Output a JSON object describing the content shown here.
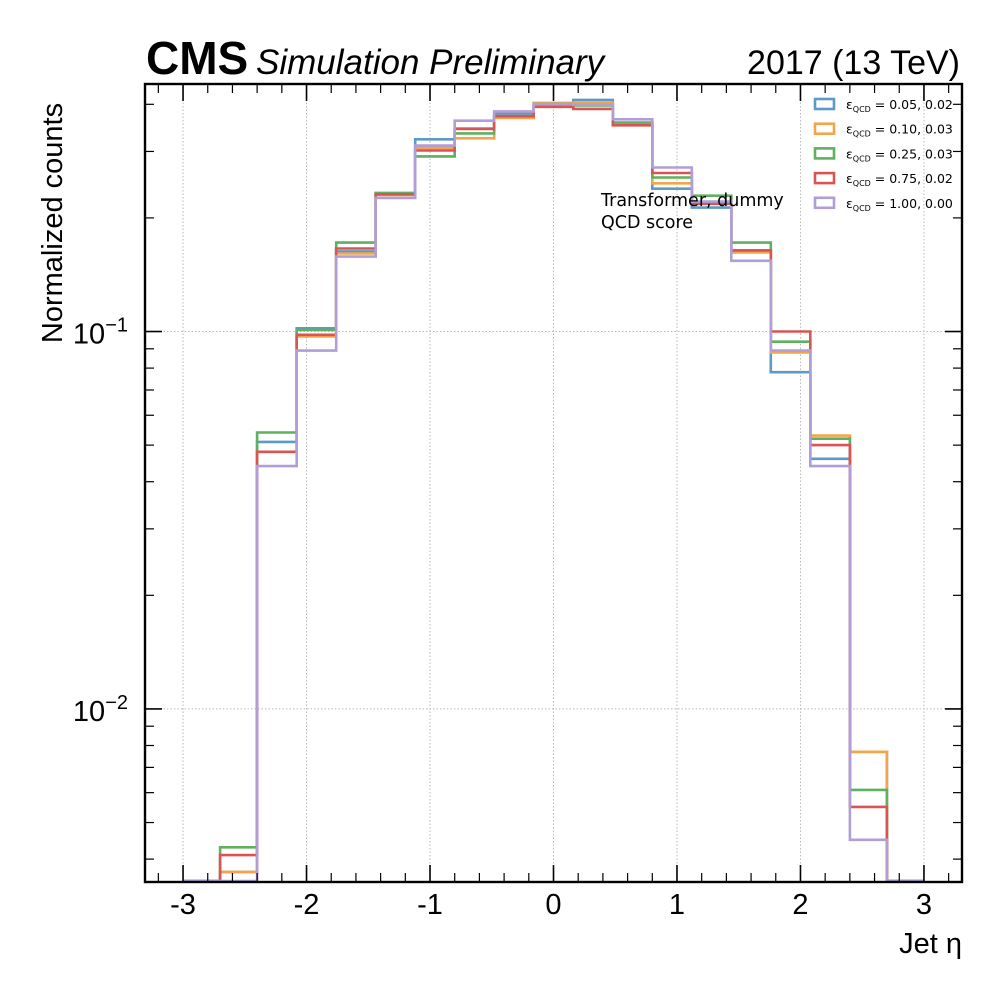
{
  "header": {
    "experiment": "CMS",
    "status": "Simulation Preliminary",
    "lumi": "2017 (13 TeV)"
  },
  "annotation": {
    "line1": "Transformer, dummy",
    "line2": "QCD score"
  },
  "chart_data": {
    "type": "step-histogram",
    "xlabel": "Jet η",
    "ylabel": "Normalized counts",
    "xlim": [
      -3.3,
      3.3
    ],
    "ylim": [
      0.0035,
      0.45
    ],
    "yscale": "log",
    "grid": true,
    "legend_position": "top-right",
    "x_ticks": [
      -3,
      -2,
      -1,
      0,
      1,
      2,
      3
    ],
    "x_tick_labels": [
      "-3",
      "-2",
      "-1",
      "0",
      "1",
      "2",
      "3"
    ],
    "y_ticks": [
      0.01,
      0.1
    ],
    "y_tick_labels": [
      [
        "10",
        "−2"
      ],
      [
        "10",
        "−1"
      ]
    ],
    "bin_edges": [
      -3.0,
      -2.7,
      -2.4,
      -2.08,
      -1.76,
      -1.44,
      -1.12,
      -0.8,
      -0.48,
      -0.16,
      0.16,
      0.48,
      0.8,
      1.12,
      1.44,
      1.76,
      2.08,
      2.4,
      2.7,
      3.0
    ],
    "series": [
      {
        "name": "ε_QCD = 0.05, 0.02",
        "label_main": "ε",
        "label_sub": "QCD",
        "label_rest": " = 0.05, 0.02",
        "color": "#5e9ac6",
        "values": [
          0.0023,
          0.0037,
          0.051,
          0.102,
          0.163,
          0.232,
          0.323,
          0.345,
          0.378,
          0.403,
          0.411,
          0.354,
          0.239,
          0.213,
          0.164,
          0.078,
          0.046,
          0.0077,
          0.0026
        ]
      },
      {
        "name": "ε_QCD = 0.10, 0.03",
        "label_main": "ε",
        "label_sub": "QCD",
        "label_rest": " = 0.10, 0.03",
        "color": "#f3a54d",
        "values": [
          0.0023,
          0.0037,
          0.048,
          0.097,
          0.161,
          0.23,
          0.307,
          0.325,
          0.368,
          0.402,
          0.404,
          0.357,
          0.247,
          0.219,
          0.162,
          0.088,
          0.053,
          0.0077,
          0.0026
        ]
      },
      {
        "name": "ε_QCD = 0.25, 0.03",
        "label_main": "ε",
        "label_sub": "QCD",
        "label_rest": " = 0.25, 0.03",
        "color": "#5fb05f",
        "values": [
          0.0023,
          0.0043,
          0.054,
          0.101,
          0.172,
          0.233,
          0.291,
          0.335,
          0.372,
          0.394,
          0.397,
          0.358,
          0.256,
          0.229,
          0.172,
          0.094,
          0.052,
          0.0061,
          0.0026
        ]
      },
      {
        "name": "ε_QCD = 0.75, 0.02",
        "label_main": "ε",
        "label_sub": "QCD",
        "label_rest": " = 0.75, 0.02",
        "color": "#d95555",
        "values": [
          0.0023,
          0.0041,
          0.048,
          0.098,
          0.166,
          0.231,
          0.302,
          0.344,
          0.372,
          0.394,
          0.389,
          0.352,
          0.263,
          0.218,
          0.164,
          0.1,
          0.05,
          0.0055,
          0.0026
        ]
      },
      {
        "name": "ε_QCD = 1.00, 0.00",
        "label_main": "ε",
        "label_sub": "QCD",
        "label_rest": " = 1.00, 0.00",
        "color": "#b09ed7",
        "values": [
          0.0023,
          0.0034,
          0.044,
          0.089,
          0.158,
          0.226,
          0.311,
          0.362,
          0.383,
          0.4,
          0.399,
          0.365,
          0.272,
          0.221,
          0.154,
          0.089,
          0.044,
          0.0045,
          0.0026
        ]
      }
    ]
  }
}
